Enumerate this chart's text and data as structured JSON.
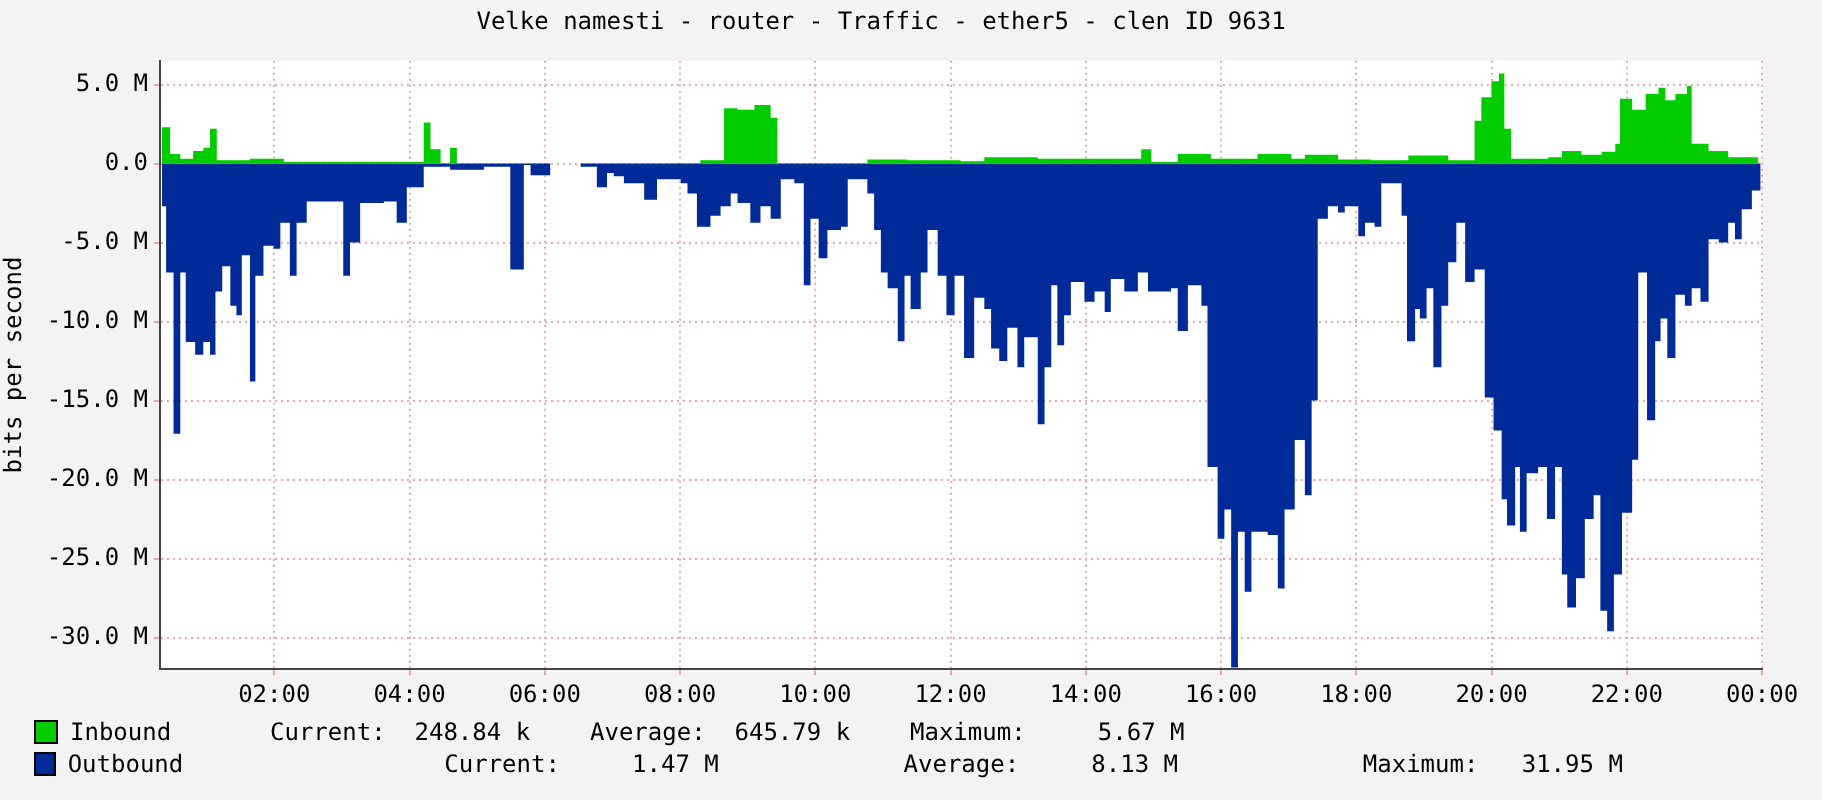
{
  "chart_data": {
    "type": "area",
    "title": "Velke namesti - router - Traffic - ether5 - clen ID 9631",
    "ylabel": "bits per second",
    "xlim": [
      0.31,
      24
    ],
    "xticks": [
      {
        "value": 2,
        "label": "02:00"
      },
      {
        "value": 4,
        "label": "04:00"
      },
      {
        "value": 6,
        "label": "06:00"
      },
      {
        "value": 8,
        "label": "08:00"
      },
      {
        "value": 10,
        "label": "10:00"
      },
      {
        "value": 12,
        "label": "12:00"
      },
      {
        "value": 14,
        "label": "14:00"
      },
      {
        "value": 16,
        "label": "16:00"
      },
      {
        "value": 18,
        "label": "18:00"
      },
      {
        "value": 20,
        "label": "20:00"
      },
      {
        "value": 22,
        "label": "22:00"
      },
      {
        "value": 24,
        "label": "00:00"
      }
    ],
    "ylim": [
      -32,
      6.5
    ],
    "yticks": [
      {
        "value": 5,
        "label": "5.0 M"
      },
      {
        "value": 0,
        "label": "0.0"
      },
      {
        "value": -5,
        "label": "-5.0 M"
      },
      {
        "value": -10,
        "label": "-10.0 M"
      },
      {
        "value": -15,
        "label": "-15.0 M"
      },
      {
        "value": -20,
        "label": "-20.0 M"
      },
      {
        "value": -25,
        "label": "-25.0 M"
      },
      {
        "value": -30,
        "label": "-30.0 M"
      }
    ],
    "grid": true,
    "legend": "bottom",
    "series": [
      {
        "name": "Inbound",
        "color": "#00cc00",
        "x": [
          0.34,
          0.46,
          0.61,
          0.8,
          0.95,
          1.05,
          1.15,
          1.64,
          2.14,
          4.21,
          4.31,
          4.46,
          4.6,
          4.7,
          6.08,
          8.3,
          8.65,
          8.85,
          9.1,
          9.34,
          9.44,
          10.77,
          11.36,
          12.15,
          12.5,
          13.29,
          14.18,
          14.82,
          14.97,
          15.36,
          15.85,
          16.54,
          17.04,
          17.24,
          17.73,
          18.22,
          18.77,
          19.36,
          19.65,
          19.75,
          19.85,
          20.0,
          20.11,
          20.19,
          20.29,
          20.84,
          21.04,
          21.33,
          21.63,
          21.83,
          21.9,
          22.08,
          22.28,
          22.47,
          22.57,
          22.72,
          22.89,
          22.96,
          23.21,
          23.5,
          23.94
        ],
        "values": [
          2.3,
          0.6,
          0.3,
          0.8,
          1.0,
          2.2,
          0.2,
          0.3,
          0.1,
          2.6,
          0.9,
          0,
          1.0,
          0,
          0,
          0.2,
          3.5,
          3.4,
          3.7,
          2.9,
          0,
          0.25,
          0.2,
          0.15,
          0.4,
          0.3,
          0.3,
          0.9,
          0.1,
          0.6,
          0.3,
          0.6,
          0.3,
          0.55,
          0.25,
          0.2,
          0.5,
          0.2,
          0.2,
          2.7,
          4.2,
          5.2,
          5.7,
          2.2,
          0.3,
          0.4,
          0.8,
          0.55,
          0.75,
          1.25,
          4.1,
          3.4,
          4.4,
          4.8,
          4.0,
          4.4,
          4.9,
          1.25,
          0.8,
          0.4,
          0.2
        ]
      },
      {
        "name": "Outbound",
        "color": "#002a97",
        "x": [
          0.34,
          0.4,
          0.51,
          0.61,
          0.69,
          0.83,
          0.95,
          1.05,
          1.13,
          1.23,
          1.35,
          1.44,
          1.52,
          1.64,
          1.72,
          1.84,
          1.99,
          2.09,
          2.23,
          2.33,
          2.48,
          2.92,
          3.02,
          3.12,
          3.27,
          3.62,
          3.81,
          3.96,
          4.11,
          4.21,
          4.6,
          5.1,
          5.49,
          5.69,
          5.79,
          6.08,
          6.53,
          6.77,
          6.92,
          7.02,
          7.17,
          7.47,
          7.66,
          8.01,
          8.11,
          8.25,
          8.45,
          8.6,
          8.75,
          8.85,
          9.04,
          9.19,
          9.34,
          9.49,
          9.69,
          9.83,
          9.93,
          10.05,
          10.18,
          10.38,
          10.48,
          10.77,
          10.87,
          10.97,
          11.07,
          11.22,
          11.32,
          11.41,
          11.56,
          11.66,
          11.81,
          11.94,
          12.06,
          12.2,
          12.35,
          12.5,
          12.6,
          12.72,
          12.84,
          12.99,
          13.09,
          13.29,
          13.39,
          13.49,
          13.58,
          13.68,
          13.78,
          13.98,
          14.13,
          14.28,
          14.37,
          14.57,
          14.77,
          14.92,
          15.26,
          15.36,
          15.51,
          15.71,
          15.8,
          15.95,
          16.05,
          16.15,
          16.25,
          16.35,
          16.45,
          16.69,
          16.84,
          16.94,
          17.09,
          17.24,
          17.34,
          17.43,
          17.58,
          17.73,
          17.83,
          18.03,
          18.13,
          18.27,
          18.37,
          18.52,
          18.67,
          18.75,
          18.87,
          18.94,
          19.04,
          19.14,
          19.26,
          19.36,
          19.48,
          19.61,
          19.75,
          19.9,
          20.03,
          20.15,
          20.23,
          20.35,
          20.42,
          20.52,
          20.69,
          20.82,
          20.94,
          21.04,
          21.12,
          21.25,
          21.38,
          21.51,
          21.61,
          21.71,
          21.81,
          21.93,
          22.08,
          22.17,
          22.3,
          22.42,
          22.5,
          22.6,
          22.72,
          22.86,
          22.96,
          23.09,
          23.21,
          23.36,
          23.5,
          23.6,
          23.7,
          23.85,
          23.98
        ],
        "values": [
          -2.7,
          -6.9,
          -17.1,
          -6.9,
          -11.3,
          -12.1,
          -11.3,
          -12.1,
          -8.1,
          -6.5,
          -9.0,
          -9.6,
          -5.8,
          -13.8,
          -7.1,
          -5.2,
          -5.4,
          -3.75,
          -7.1,
          -3.75,
          -2.4,
          -2.4,
          -7.1,
          -5.0,
          -2.5,
          -2.4,
          -3.75,
          -1.5,
          -1.5,
          -0.2,
          -0.4,
          -0.2,
          -6.7,
          -0.1,
          -0.75,
          0,
          -0.2,
          -1.5,
          -0.6,
          -0.8,
          -1.25,
          -2.3,
          -1.0,
          -1.25,
          -1.9,
          -4.0,
          -3.3,
          -2.7,
          -1.9,
          -2.5,
          -3.75,
          -2.7,
          -3.5,
          -1.0,
          -1.25,
          -7.7,
          -3.5,
          -6.0,
          -4.2,
          -4.0,
          -1.0,
          -1.9,
          -4.2,
          -6.9,
          -7.9,
          -11.25,
          -7.1,
          -9.2,
          -6.9,
          -4.2,
          -7.1,
          -9.6,
          -7.1,
          -12.3,
          -8.5,
          -9.2,
          -11.7,
          -12.5,
          -10.4,
          -12.9,
          -11.0,
          -16.5,
          -12.9,
          -7.7,
          -11.5,
          -9.6,
          -7.5,
          -8.75,
          -8.1,
          -9.4,
          -7.3,
          -8.1,
          -6.9,
          -8.1,
          -7.9,
          -10.6,
          -7.7,
          -9.0,
          -19.2,
          -23.75,
          -21.9,
          -31.9,
          -23.3,
          -27.1,
          -23.3,
          -23.5,
          -26.9,
          -21.9,
          -17.5,
          -21.0,
          -15.0,
          -3.5,
          -2.7,
          -3.1,
          -2.7,
          -4.6,
          -3.75,
          -4.0,
          -1.25,
          -1.25,
          -3.3,
          -11.25,
          -9.2,
          -9.8,
          -7.9,
          -12.9,
          -9.0,
          -6.25,
          -3.75,
          -7.5,
          -6.7,
          -14.8,
          -16.9,
          -21.25,
          -22.9,
          -19.2,
          -23.3,
          -19.6,
          -19.2,
          -22.5,
          -19.2,
          -26.0,
          -28.1,
          -26.25,
          -22.5,
          -21.0,
          -28.3,
          -29.6,
          -26.0,
          -22.1,
          -18.75,
          -6.9,
          -16.25,
          -11.25,
          -9.8,
          -12.3,
          -8.3,
          -9.0,
          -7.9,
          -8.75,
          -4.8,
          -5.0,
          -3.75,
          -4.8,
          -2.9,
          -1.7,
          -1.5
        ]
      }
    ],
    "annotations": [
      "Current:  248.84 k",
      "Average:  645.79 k",
      "Maximum:     5.67 M",
      "Current:     1.47 M",
      "Average:     8.13 M",
      "Maximum:   31.95 M"
    ]
  }
}
